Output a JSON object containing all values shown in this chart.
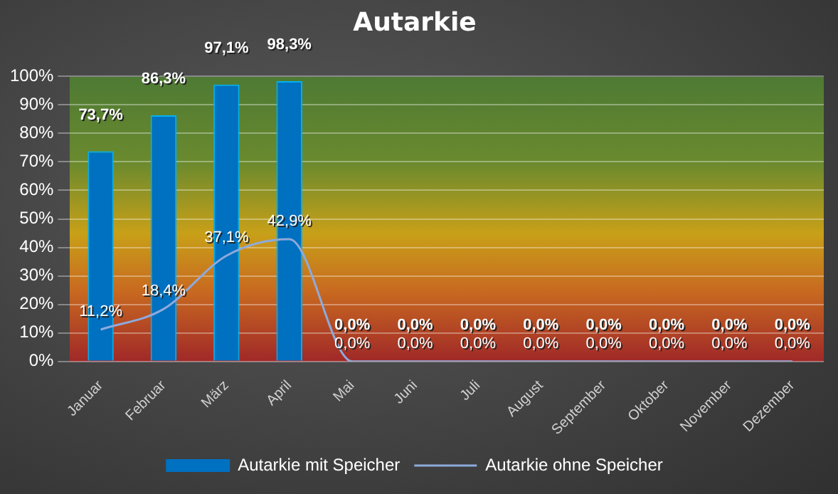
{
  "chart_data": {
    "type": "bar",
    "title": "Autarkie",
    "categories": [
      "Januar",
      "Februar",
      "März",
      "April",
      "Mai",
      "Juni",
      "Juli",
      "August",
      "September",
      "Oktober",
      "November",
      "Dezember"
    ],
    "series": [
      {
        "name": "Autarkie mit Speicher",
        "color": "#0070c0",
        "values": [
          73.7,
          86.3,
          97.1,
          98.3,
          0,
          0,
          0,
          0,
          0,
          0,
          0,
          0
        ],
        "value_labels": [
          "73,7%",
          "86,3%",
          "97,1%",
          "98,3%",
          "0,0%",
          "0,0%",
          "0,0%",
          "0,0%",
          "0,0%",
          "0,0%",
          "0,0%",
          "0,0%"
        ]
      },
      {
        "name": "Autarkie ohne Speicher",
        "type": "line",
        "color": "#8eaadb",
        "values": [
          11.2,
          18.4,
          37.1,
          42.9,
          0,
          0,
          0,
          0,
          0,
          0,
          0,
          0
        ],
        "value_labels": [
          "11,2%",
          "18,4%",
          "37,1%",
          "42,9%",
          "0,0%",
          "0,0%",
          "0,0%",
          "0,0%",
          "0,0%",
          "0,0%",
          "0,0%",
          "0,0%"
        ]
      }
    ],
    "ylim": [
      0,
      100
    ],
    "yticks": [
      {
        "value": 0,
        "label": "0%"
      },
      {
        "value": 10,
        "label": "10%"
      },
      {
        "value": 20,
        "label": "20%"
      },
      {
        "value": 30,
        "label": "30%"
      },
      {
        "value": 40,
        "label": "40%"
      },
      {
        "value": 50,
        "label": "50%"
      },
      {
        "value": 60,
        "label": "60%"
      },
      {
        "value": 70,
        "label": "70%"
      },
      {
        "value": 80,
        "label": "80%"
      },
      {
        "value": 90,
        "label": "90%"
      },
      {
        "value": 100,
        "label": "100%"
      }
    ],
    "grid": "y",
    "legend": "bottom",
    "marker": "none",
    "line_style": "solid"
  }
}
